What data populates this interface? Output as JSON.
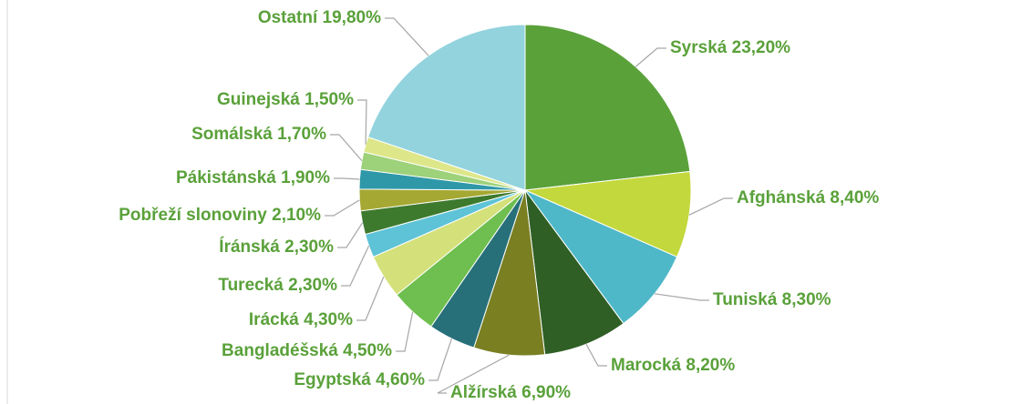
{
  "chart_data": {
    "type": "pie",
    "categories": [
      "Syrská",
      "Afghánská",
      "Tuniská ",
      "Marocká",
      "Alžírská",
      "Egyptská",
      "Bangladéšská",
      "Irácká",
      "Turecká",
      "Íránská",
      "Pobřeží slonoviny",
      "Pákistánská",
      "Somálská",
      "Guinejská",
      "Ostatní"
    ],
    "values": [
      23.2,
      8.4,
      8.3,
      8.2,
      6.9,
      4.6,
      4.5,
      4.3,
      2.3,
      2.3,
      2.1,
      1.9,
      1.7,
      1.5,
      19.8
    ],
    "value_labels": [
      "23,20%",
      "8,40%",
      "8,30%",
      "8,20%",
      "6,90%",
      "4,60%",
      "4,50%",
      "4,30%",
      "2,30%",
      "2,30%",
      "2,10%",
      "1,90%",
      "1,70%",
      "1,50%",
      "19,80%"
    ],
    "colors": [
      "#5aa13a",
      "#c3d83c",
      "#4fb8c8",
      "#2f5f25",
      "#7a7f22",
      "#27707a",
      "#6ebf4f",
      "#d4e07a",
      "#5ec3d6",
      "#3d7a2e",
      "#a5a832",
      "#2f98a8",
      "#9dd17a",
      "#dde78a",
      "#92d3de"
    ]
  }
}
